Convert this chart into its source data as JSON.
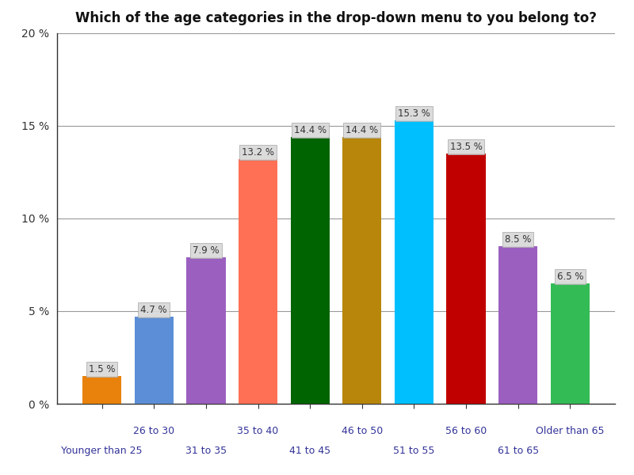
{
  "title": "Which of the age categories in the drop-down menu to you belong to?",
  "categories": [
    "Younger than 25",
    "26 to 30",
    "31 to 35",
    "35 to 40",
    "41 to 45",
    "46 to 50",
    "51 to 55",
    "56 to 60",
    "61 to 65",
    "Older than 65"
  ],
  "values": [
    1.5,
    4.7,
    7.9,
    13.2,
    14.4,
    14.4,
    15.3,
    13.5,
    8.5,
    6.5
  ],
  "bar_colors": [
    "#E8820C",
    "#5B8ED6",
    "#9B5FC0",
    "#FF7055",
    "#006400",
    "#B8860B",
    "#00BFFF",
    "#C00000",
    "#9B5FC0",
    "#33BB55"
  ],
  "ylim": [
    0,
    20
  ],
  "yticks": [
    0,
    5,
    10,
    15,
    20
  ],
  "ytick_labels": [
    "0 %",
    "5 %",
    "10 %",
    "15 %",
    "20 %"
  ],
  "title_fontsize": 12,
  "bar_width": 0.75,
  "background_color": "#FFFFFF",
  "grid_color": "#999999",
  "label_bg_color": "#D8D8D8",
  "label_font_color": "#333333",
  "label_fontsize": 8.5
}
